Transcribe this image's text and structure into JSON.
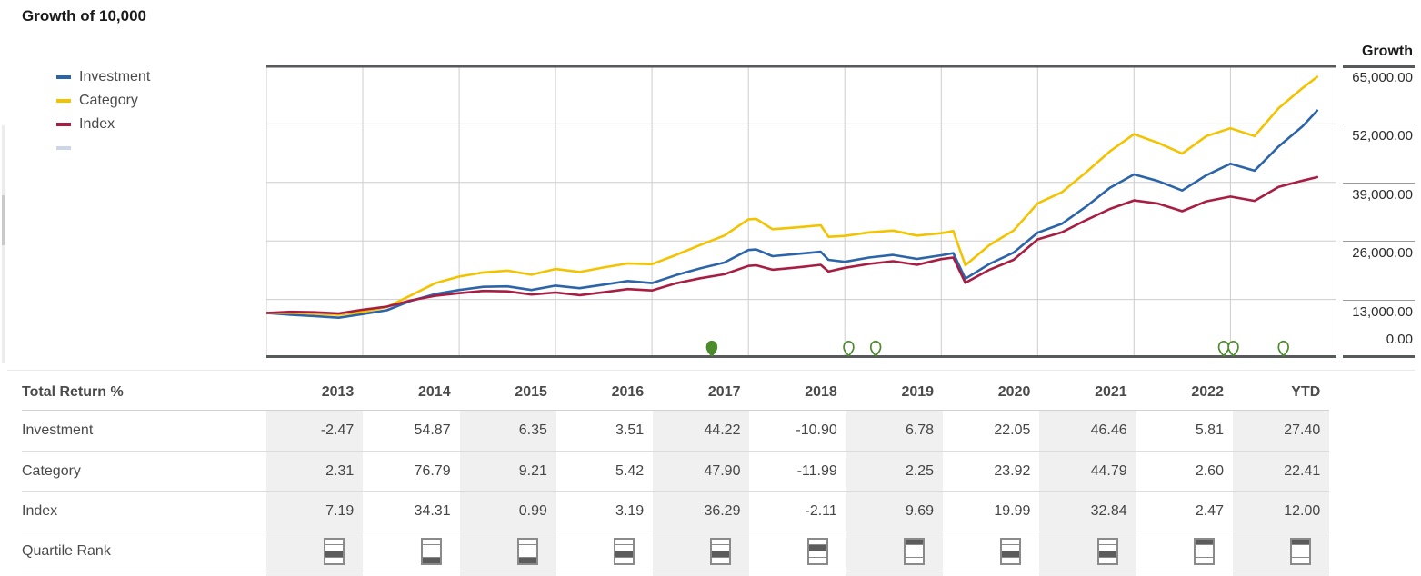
{
  "title": "Growth of 10,000",
  "legend": {
    "items": [
      {
        "label": "Investment",
        "color": "#2C64A9"
      },
      {
        "label": "Category",
        "color": "#F3C300"
      },
      {
        "label": "Index",
        "color": "#A71E42"
      }
    ],
    "partial_item_color": "#ccd6e8"
  },
  "chart_data": {
    "type": "line",
    "title": "Growth of 10,000",
    "x_unit": "decimal_year",
    "xlim": [
      2013.0,
      2024.1
    ],
    "ylim": [
      0,
      65000
    ],
    "start_value": 10000,
    "x_gridlines": [
      2014,
      2015,
      2016,
      2017,
      2018,
      2019,
      2020,
      2021,
      2022,
      2023
    ],
    "y_gridlines": [
      13000,
      26000,
      39000,
      52000
    ],
    "y_axis": {
      "header": "Growth",
      "ticks": [
        {
          "label": "65,000.00",
          "value": 65000
        },
        {
          "label": "52,000.00",
          "value": 52000
        },
        {
          "label": "39,000.00",
          "value": 39000
        },
        {
          "label": "26,000.00",
          "value": 26000
        },
        {
          "label": "13,000.00",
          "value": 13000
        },
        {
          "label": "0.00",
          "value": 0
        }
      ]
    },
    "x": [
      2013.0,
      2013.25,
      2013.5,
      2013.75,
      2014.0,
      2014.25,
      2014.5,
      2014.75,
      2015.0,
      2015.25,
      2015.5,
      2015.75,
      2016.0,
      2016.25,
      2016.5,
      2016.75,
      2017.0,
      2017.25,
      2017.5,
      2017.75,
      2018.0,
      2018.08,
      2018.25,
      2018.5,
      2018.75,
      2018.83,
      2019.0,
      2019.25,
      2019.5,
      2019.75,
      2020.0,
      2020.125,
      2020.25,
      2020.5,
      2020.75,
      2021.0,
      2021.25,
      2021.5,
      2021.75,
      2022.0,
      2022.25,
      2022.5,
      2022.75,
      2023.0,
      2023.25,
      2023.5,
      2023.75,
      2023.9
    ],
    "series": [
      {
        "name": "Investment",
        "color": "#2C64A9",
        "values": [
          10000,
          9600,
          9300,
          8950,
          9753,
          10600,
          12700,
          14200,
          15104,
          15800,
          15900,
          15100,
          16063,
          15500,
          16300,
          17100,
          16627,
          18400,
          19900,
          21200,
          23980,
          24100,
          22600,
          23100,
          23600,
          21800,
          21366,
          22300,
          22900,
          22000,
          22815,
          23300,
          17600,
          20900,
          23400,
          27846,
          29800,
          33600,
          37800,
          40782,
          39300,
          37200,
          40600,
          43151,
          41600,
          47000,
          51500,
          54974
        ]
      },
      {
        "name": "Category",
        "color": "#F3C300",
        "values": [
          10000,
          10050,
          9850,
          9600,
          10231,
          11300,
          13900,
          16600,
          18087,
          19000,
          19400,
          18500,
          19753,
          19100,
          20100,
          21000,
          20824,
          22900,
          25100,
          27200,
          30798,
          30900,
          28600,
          29000,
          29500,
          26900,
          27105,
          27900,
          28300,
          27200,
          27715,
          28200,
          20600,
          25100,
          28300,
          34345,
          36800,
          41200,
          45900,
          49728,
          47800,
          45400,
          49300,
          51021,
          49300,
          55500,
          60000,
          62455
        ]
      },
      {
        "name": "Index",
        "color": "#A71E42",
        "values": [
          10000,
          10250,
          10150,
          9900,
          10719,
          11400,
          12800,
          13800,
          14397,
          14900,
          14800,
          14100,
          14540,
          13950,
          14600,
          15300,
          15004,
          16600,
          17700,
          18600,
          20449,
          20600,
          19600,
          20100,
          20700,
          19200,
          20018,
          20900,
          21500,
          20700,
          21957,
          22300,
          16700,
          19600,
          21800,
          26345,
          27900,
          30600,
          33100,
          34997,
          34300,
          32600,
          34800,
          35861,
          34900,
          38000,
          39400,
          40164
        ]
      }
    ],
    "event_markers": {
      "color": "#4C8B2B",
      "items": [
        {
          "x": 2017.62,
          "style": "filled"
        },
        {
          "x": 2019.04,
          "style": "hollow"
        },
        {
          "x": 2019.32,
          "style": "hollow"
        },
        {
          "x": 2022.93,
          "style": "hollow"
        },
        {
          "x": 2023.03,
          "style": "hollow"
        },
        {
          "x": 2023.55,
          "style": "hollow"
        }
      ]
    }
  },
  "table": {
    "title": "Total Return %",
    "columns": [
      "2013",
      "2014",
      "2015",
      "2016",
      "2017",
      "2018",
      "2019",
      "2020",
      "2021",
      "2022",
      "YTD"
    ],
    "shaded_columns": [
      0,
      2,
      4,
      6,
      8,
      10
    ],
    "rows": [
      {
        "label": "Investment",
        "values": [
          "-2.47",
          "54.87",
          "6.35",
          "3.51",
          "44.22",
          "-10.90",
          "6.78",
          "22.05",
          "46.46",
          "5.81",
          "27.40"
        ]
      },
      {
        "label": "Category",
        "values": [
          "2.31",
          "76.79",
          "9.21",
          "5.42",
          "47.90",
          "-11.99",
          "2.25",
          "23.92",
          "44.79",
          "2.60",
          "22.41"
        ]
      },
      {
        "label": "Index",
        "values": [
          "7.19",
          "34.31",
          "0.99",
          "3.19",
          "36.29",
          "-2.11",
          "9.69",
          "19.99",
          "32.84",
          "2.47",
          "12.00"
        ]
      }
    ],
    "quartile_row": {
      "label": "Quartile Rank",
      "ranks": [
        3,
        4,
        4,
        3,
        3,
        2,
        1,
        3,
        3,
        1,
        1
      ]
    }
  }
}
